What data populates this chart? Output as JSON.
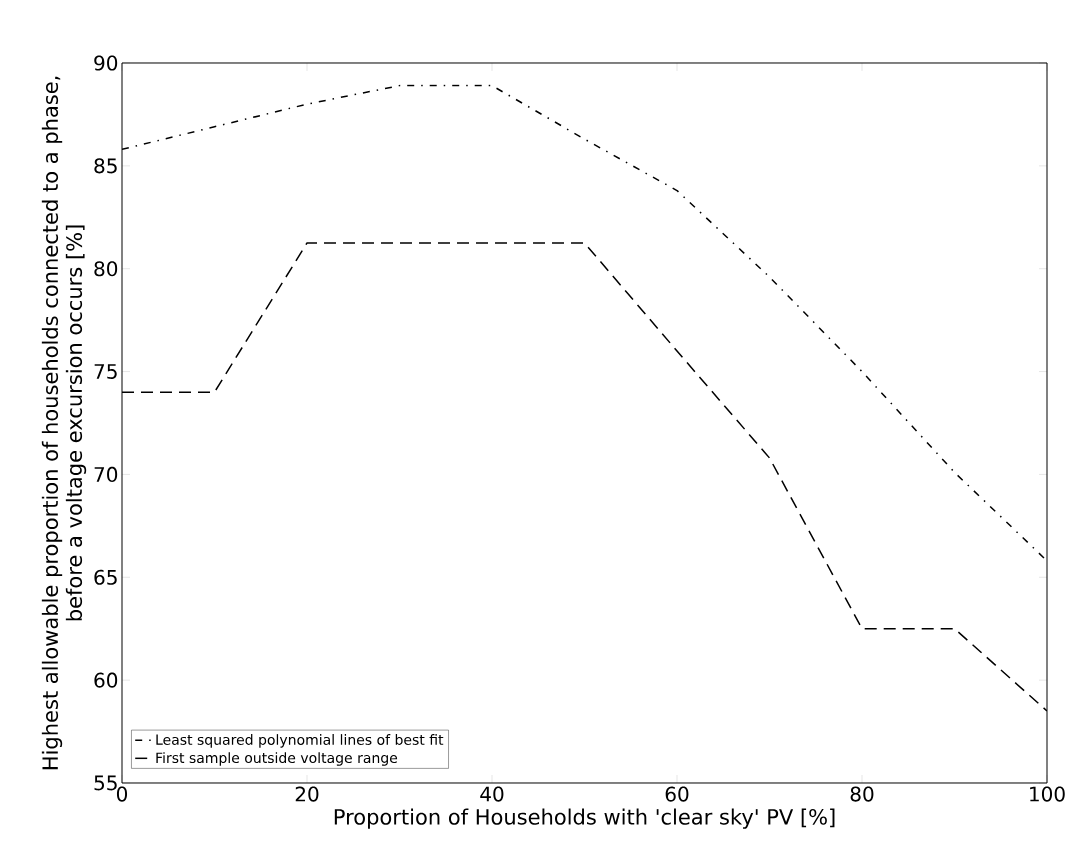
{
  "chart_data": {
    "type": "line",
    "xlabel": "Proportion of Households with 'clear sky' PV [%]",
    "ylabel": "Highest allowable proportion of households connected to a phase,\nbefore a voltage excursion occurs [%]",
    "x": [
      0,
      10,
      20,
      30,
      40,
      50,
      60,
      70,
      80,
      90,
      100
    ],
    "series": [
      {
        "name": "Least squared polynomial lines of best fit",
        "color": "#000000",
        "line_style": "dashdot",
        "values": [
          85.8,
          86.9,
          88.0,
          88.9,
          88.9,
          86.3,
          83.8,
          79.6,
          75.0,
          70.1,
          65.8
        ]
      },
      {
        "name": "First sample outside voltage range",
        "color": "#000000",
        "line_style": "dashed",
        "values": [
          74.0,
          74.0,
          81.25,
          81.25,
          81.25,
          81.25,
          76.0,
          70.8,
          62.5,
          62.5,
          58.5
        ]
      }
    ],
    "xlim": [
      0,
      100
    ],
    "xticks": [
      0,
      20,
      40,
      60,
      80,
      100
    ],
    "ylim": [
      55,
      90
    ],
    "yticks": [
      55,
      60,
      65,
      70,
      75,
      80,
      85,
      90
    ],
    "grid": false,
    "legend": "bottom left",
    "marker": "none"
  }
}
